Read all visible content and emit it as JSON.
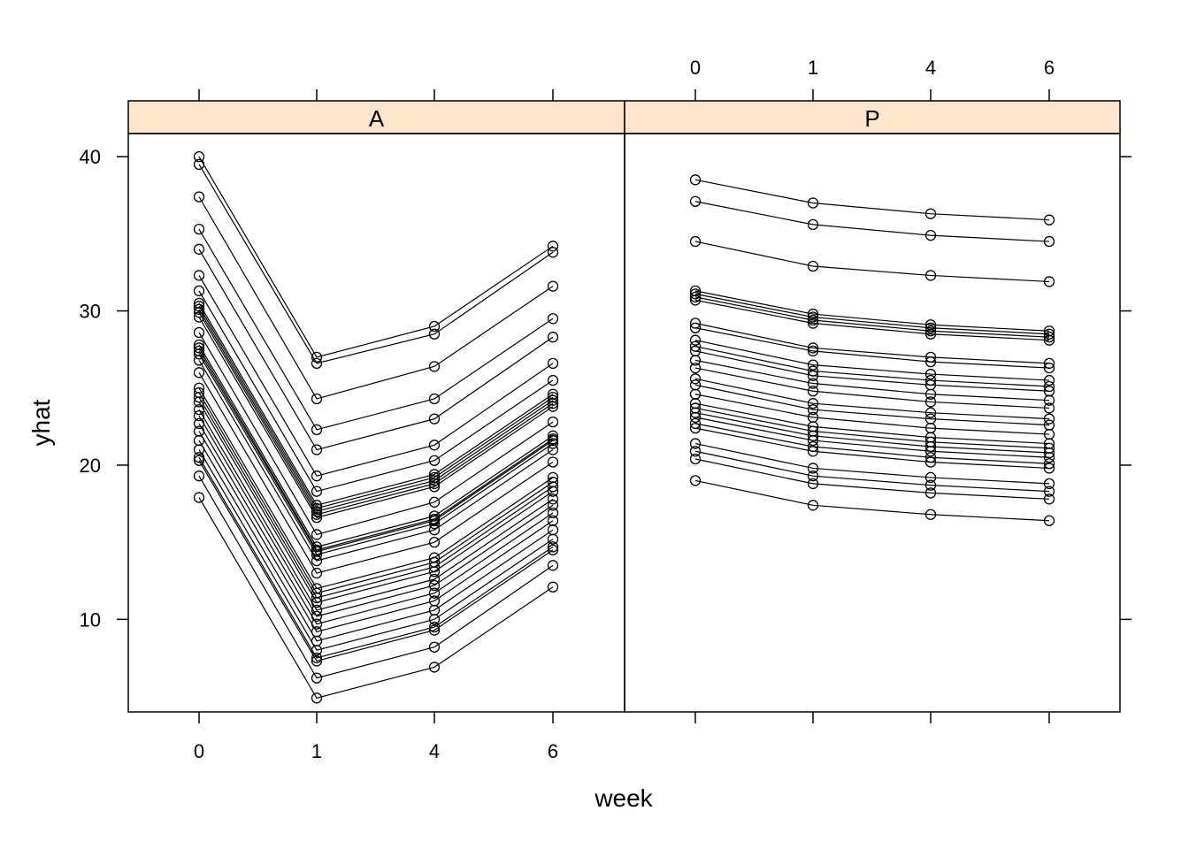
{
  "chart_data": {
    "type": "line",
    "xlabel": "week",
    "ylabel": "yhat",
    "x_categories": [
      "0",
      "1",
      "4",
      "6"
    ],
    "y_ticks": [
      10,
      20,
      30,
      40
    ],
    "ylim": [
      4,
      41.5
    ],
    "panels": [
      {
        "label": "A",
        "series": [
          {
            "values": [
              40.0,
              27.0,
              29.0,
              34.2
            ]
          },
          {
            "values": [
              39.5,
              26.6,
              28.5,
              33.8
            ]
          },
          {
            "values": [
              37.4,
              24.3,
              26.4,
              31.6
            ]
          },
          {
            "values": [
              35.3,
              22.3,
              24.3,
              29.5
            ]
          },
          {
            "values": [
              34.0,
              21.0,
              23.0,
              28.3
            ]
          },
          {
            "values": [
              32.3,
              19.3,
              21.3,
              26.6
            ]
          },
          {
            "values": [
              31.3,
              18.3,
              20.3,
              25.5
            ]
          },
          {
            "values": [
              30.5,
              17.4,
              19.4,
              24.6
            ]
          },
          {
            "values": [
              30.3,
              17.2,
              19.2,
              24.4
            ]
          },
          {
            "values": [
              30.1,
              17.0,
              19.0,
              24.2
            ]
          },
          {
            "values": [
              29.9,
              16.8,
              18.8,
              24.0
            ]
          },
          {
            "values": [
              29.6,
              16.6,
              18.6,
              23.8
            ]
          },
          {
            "values": [
              28.6,
              15.5,
              17.6,
              22.8
            ]
          },
          {
            "values": [
              27.8,
              14.7,
              16.7,
              21.9
            ]
          },
          {
            "values": [
              27.6,
              14.5,
              16.5,
              21.7
            ]
          },
          {
            "values": [
              27.4,
              14.4,
              16.4,
              21.6
            ]
          },
          {
            "values": [
              27.2,
              14.2,
              16.2,
              21.4
            ]
          },
          {
            "values": [
              26.8,
              13.8,
              15.8,
              21.0
            ]
          },
          {
            "values": [
              26.0,
              13.0,
              15.0,
              20.2
            ]
          },
          {
            "values": [
              25.0,
              12.0,
              14.0,
              19.2
            ]
          },
          {
            "values": [
              24.7,
              11.7,
              13.7,
              18.9
            ]
          },
          {
            "values": [
              24.4,
              11.4,
              13.4,
              18.6
            ]
          },
          {
            "values": [
              24.1,
              11.1,
              13.1,
              18.3
            ]
          },
          {
            "values": [
              23.6,
              10.6,
              12.6,
              17.8
            ]
          },
          {
            "values": [
              23.2,
              10.2,
              12.2,
              17.4
            ]
          },
          {
            "values": [
              22.7,
              9.7,
              11.7,
              16.9
            ]
          },
          {
            "values": [
              22.2,
              9.2,
              11.2,
              16.4
            ]
          },
          {
            "values": [
              21.6,
              8.6,
              10.6,
              15.8
            ]
          },
          {
            "values": [
              21.0,
              8.0,
              10.0,
              15.2
            ]
          },
          {
            "values": [
              20.5,
              7.5,
              9.5,
              14.7
            ]
          },
          {
            "values": [
              20.3,
              7.3,
              9.3,
              14.5
            ]
          },
          {
            "values": [
              19.3,
              6.2,
              8.2,
              13.5
            ]
          },
          {
            "values": [
              17.9,
              4.9,
              6.9,
              12.1
            ]
          }
        ]
      },
      {
        "label": "P",
        "series": [
          {
            "values": [
              38.5,
              37.0,
              36.3,
              35.9
            ]
          },
          {
            "values": [
              37.1,
              35.6,
              34.9,
              34.5
            ]
          },
          {
            "values": [
              34.5,
              32.9,
              32.3,
              31.9
            ]
          },
          {
            "values": [
              31.3,
              29.8,
              29.1,
              28.7
            ]
          },
          {
            "values": [
              31.1,
              29.6,
              28.9,
              28.5
            ]
          },
          {
            "values": [
              30.9,
              29.4,
              28.7,
              28.3
            ]
          },
          {
            "values": [
              30.7,
              29.2,
              28.5,
              28.1
            ]
          },
          {
            "values": [
              29.2,
              27.6,
              27.0,
              26.6
            ]
          },
          {
            "values": [
              28.9,
              27.4,
              26.7,
              26.3
            ]
          },
          {
            "values": [
              28.1,
              26.5,
              25.9,
              25.5
            ]
          },
          {
            "values": [
              27.7,
              26.1,
              25.5,
              25.1
            ]
          },
          {
            "values": [
              27.4,
              25.8,
              25.2,
              24.8
            ]
          },
          {
            "values": [
              26.8,
              25.3,
              24.6,
              24.2
            ]
          },
          {
            "values": [
              26.3,
              24.8,
              24.1,
              23.7
            ]
          },
          {
            "values": [
              25.6,
              24.0,
              23.4,
              23.0
            ]
          },
          {
            "values": [
              25.2,
              23.6,
              23.0,
              22.6
            ]
          },
          {
            "values": [
              24.6,
              23.1,
              22.4,
              22.0
            ]
          },
          {
            "values": [
              24.0,
              22.5,
              21.8,
              21.4
            ]
          },
          {
            "values": [
              23.7,
              22.2,
              21.5,
              21.1
            ]
          },
          {
            "values": [
              23.4,
              21.9,
              21.2,
              20.8
            ]
          },
          {
            "values": [
              23.1,
              21.6,
              20.9,
              20.5
            ]
          },
          {
            "values": [
              22.7,
              21.2,
              20.5,
              20.1
            ]
          },
          {
            "values": [
              22.4,
              20.9,
              20.2,
              19.8
            ]
          },
          {
            "values": [
              21.4,
              19.8,
              19.2,
              18.8
            ]
          },
          {
            "values": [
              20.9,
              19.3,
              18.7,
              18.3
            ]
          },
          {
            "values": [
              20.4,
              18.8,
              18.2,
              17.8
            ]
          },
          {
            "values": [
              19.0,
              17.4,
              16.8,
              16.4
            ]
          }
        ]
      }
    ]
  }
}
